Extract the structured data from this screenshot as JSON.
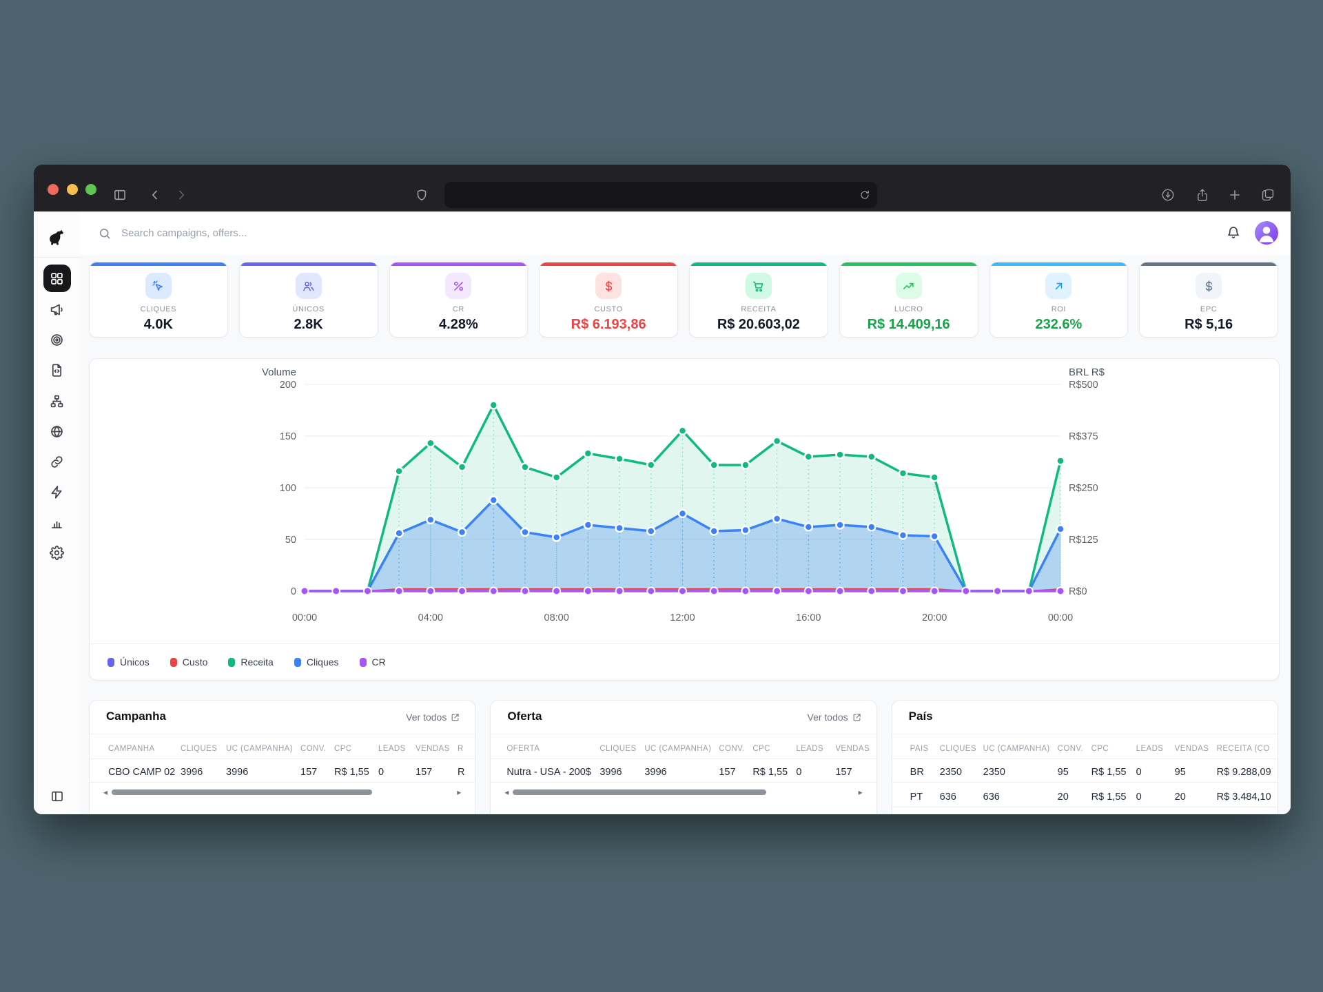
{
  "browser": {
    "icons": [
      "sidebar-toggle",
      "back",
      "forward",
      "shield",
      "reload",
      "download",
      "share",
      "new-tab",
      "tab-overview"
    ],
    "traffic_lights": [
      "#ed6a5e",
      "#f5bf4f",
      "#61c454"
    ]
  },
  "topbar": {
    "search_placeholder": "Search campaigns, offers..."
  },
  "sidebar": {
    "active": "dashboard",
    "items": [
      "dashboard",
      "campaigns",
      "offers",
      "landing-pages",
      "funnels",
      "domains",
      "links",
      "automations",
      "reports",
      "settings"
    ]
  },
  "stat_cards": [
    {
      "label": "CLIQUES",
      "value": "4.0K",
      "icon": "cursor-click-icon",
      "accent": "#3b82f6",
      "icon_bg": "#dbeafe",
      "icon_fg": "#3b82f6",
      "value_color": "#111827"
    },
    {
      "label": "ÚNICOS",
      "value": "2.8K",
      "icon": "users-icon",
      "accent": "#6366f1",
      "icon_bg": "#e0e7ff",
      "icon_fg": "#6366f1",
      "value_color": "#111827"
    },
    {
      "label": "CR",
      "value": "4.28%",
      "icon": "percent-icon",
      "accent": "#a855f7",
      "icon_bg": "#f3e8ff",
      "icon_fg": "#a855f7",
      "value_color": "#111827"
    },
    {
      "label": "CUSTO",
      "value": "R$ 6.193,86",
      "icon": "dollar-icon",
      "accent": "#ef4444",
      "icon_bg": "#fee2e2",
      "icon_fg": "#ef4444",
      "value_color": "#ef4444"
    },
    {
      "label": "RECEITA",
      "value": "R$ 20.603,02",
      "icon": "cart-icon",
      "accent": "#10b981",
      "icon_bg": "#d1fae5",
      "icon_fg": "#10b981",
      "value_color": "#111827"
    },
    {
      "label": "LUCRO",
      "value": "R$ 14.409,16",
      "icon": "trending-up-icon",
      "accent": "#22c55e",
      "icon_bg": "#dcfce7",
      "icon_fg": "#22c55e",
      "value_color": "#16a34a"
    },
    {
      "label": "ROI",
      "value": "232.6%",
      "icon": "arrow-up-right-icon",
      "accent": "#38bdf8",
      "icon_bg": "#e0f2fe",
      "icon_fg": "#0ea5e9",
      "value_color": "#16a34a"
    },
    {
      "label": "EPC",
      "value": "R$ 5,16",
      "icon": "dollar-icon",
      "accent": "#64748b",
      "icon_bg": "#f1f5f9",
      "icon_fg": "#64748b",
      "value_color": "#111827"
    }
  ],
  "chart_data": {
    "type": "area",
    "x_hours": [
      "00:00",
      "01:00",
      "02:00",
      "03:00",
      "04:00",
      "05:00",
      "06:00",
      "07:00",
      "08:00",
      "09:00",
      "10:00",
      "11:00",
      "12:00",
      "13:00",
      "14:00",
      "15:00",
      "16:00",
      "17:00",
      "18:00",
      "19:00",
      "20:00",
      "21:00",
      "22:00",
      "23:00",
      "00:00"
    ],
    "x_tick_labels": [
      "00:00",
      "04:00",
      "08:00",
      "12:00",
      "16:00",
      "20:00",
      "00:00"
    ],
    "left_axis": {
      "title": "Volume",
      "ticks": [
        0,
        50,
        100,
        150,
        200
      ],
      "range": [
        0,
        200
      ]
    },
    "right_axis": {
      "title": "BRL R$",
      "ticks": [
        "R$0",
        "R$125",
        "R$250",
        "R$375",
        "R$500"
      ],
      "range": [
        0,
        500
      ]
    },
    "grid": true,
    "legend_position": "bottom",
    "series": [
      {
        "name": "Únicos",
        "color": "#6366f1",
        "axis": "left",
        "values": [
          0,
          0,
          0,
          0,
          0,
          0,
          0,
          0,
          0,
          0,
          0,
          0,
          0,
          0,
          0,
          0,
          0,
          0,
          0,
          0,
          0,
          0,
          0,
          0,
          0
        ]
      },
      {
        "name": "Custo",
        "color": "#ef4444",
        "axis": "right",
        "values": [
          0,
          0,
          0,
          5,
          5,
          5,
          5,
          5,
          5,
          5,
          5,
          5,
          5,
          5,
          5,
          5,
          5,
          5,
          5,
          5,
          5,
          0,
          0,
          0,
          5
        ]
      },
      {
        "name": "Receita",
        "color": "#10b981",
        "axis": "right",
        "values": [
          0,
          0,
          0,
          290,
          358,
          300,
          450,
          300,
          275,
          333,
          320,
          305,
          388,
          305,
          305,
          363,
          325,
          330,
          325,
          285,
          275,
          0,
          0,
          0,
          315
        ]
      },
      {
        "name": "Cliques",
        "color": "#3b82f6",
        "axis": "left",
        "values": [
          0,
          0,
          0,
          56,
          69,
          57,
          88,
          57,
          52,
          64,
          61,
          58,
          75,
          58,
          59,
          70,
          62,
          64,
          62,
          54,
          53,
          0,
          0,
          0,
          60
        ]
      },
      {
        "name": "CR",
        "color": "#a855f7",
        "axis": "left",
        "values": [
          0,
          0,
          0,
          0,
          0,
          0,
          0,
          0,
          0,
          0,
          0,
          0,
          0,
          0,
          0,
          0,
          0,
          0,
          0,
          0,
          0,
          0,
          0,
          0,
          0
        ]
      }
    ]
  },
  "tables": [
    {
      "title": "Campanha",
      "link": "Ver todos",
      "scrollbar": true,
      "columns": [
        "CAMPANHA",
        "CLIQUES",
        "UC (CAMPANHA)",
        "CONV.",
        "CPC",
        "LEADS",
        "VENDAS",
        "R"
      ],
      "rows": [
        [
          "CBO CAMP 02",
          "3996",
          "3996",
          "157",
          "R$ 1,55",
          "0",
          "157",
          "R"
        ]
      ]
    },
    {
      "title": "Oferta",
      "link": "Ver todos",
      "scrollbar": true,
      "columns": [
        "OFERTA",
        "CLIQUES",
        "UC (CAMPANHA)",
        "CONV.",
        "CPC",
        "LEADS",
        "VENDAS"
      ],
      "rows": [
        [
          "Nutra - USA - 200$",
          "3996",
          "3996",
          "157",
          "R$ 1,55",
          "0",
          "157"
        ]
      ]
    },
    {
      "title": "País",
      "link": null,
      "scrollbar": false,
      "columns": [
        "PAÍS",
        "CLIQUES",
        "UC (CAMPANHA)",
        "CONV.",
        "CPC",
        "LEADS",
        "VENDAS",
        "RECEITA (CO"
      ],
      "rows": [
        [
          "BR",
          "2350",
          "2350",
          "95",
          "R$ 1,55",
          "0",
          "95",
          "R$ 9.288,09"
        ],
        [
          "PT",
          "636",
          "636",
          "20",
          "R$ 1,55",
          "0",
          "20",
          "R$ 3.484,10"
        ]
      ]
    }
  ]
}
